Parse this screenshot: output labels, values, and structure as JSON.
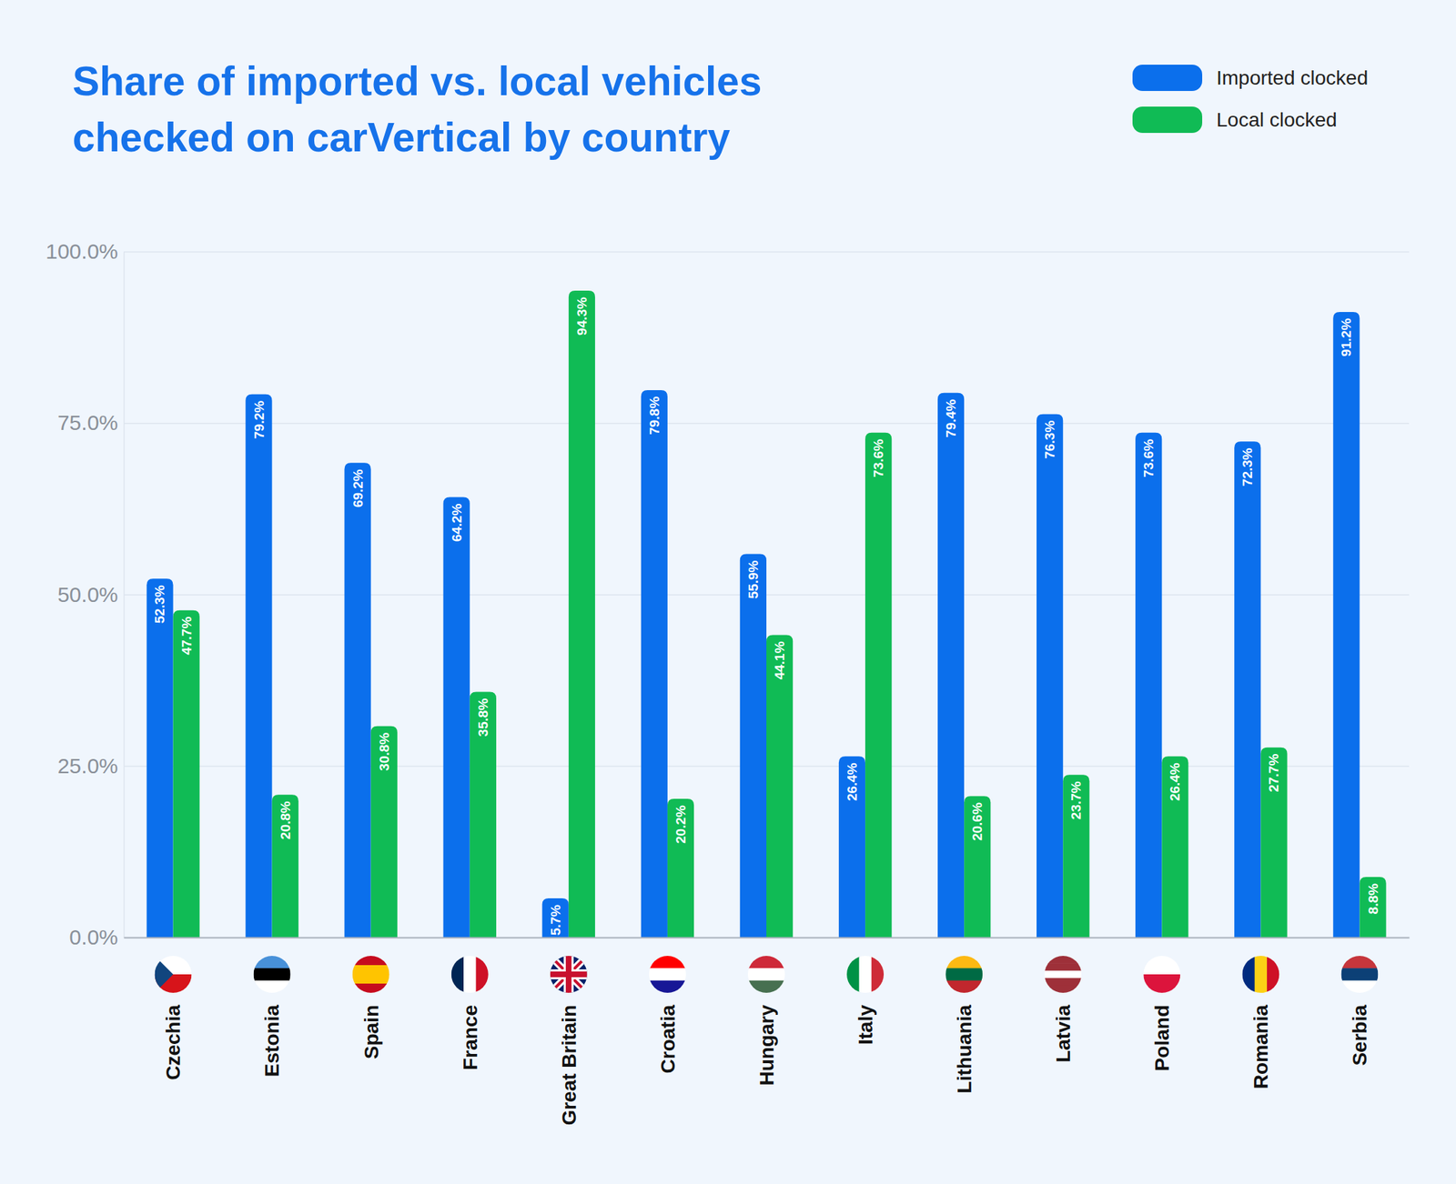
{
  "chart_data": {
    "type": "bar",
    "title": "Share of imported vs. local vehicles checked on carVertical by country",
    "categories": [
      "Czechia",
      "Estonia",
      "Spain",
      "France",
      "Great Britain",
      "Croatia",
      "Hungary",
      "Italy",
      "Lithuania",
      "Latvia",
      "Poland",
      "Romania",
      "Serbia"
    ],
    "series": [
      {
        "name": "Imported clocked",
        "color": "#0b6fec",
        "values": [
          52.3,
          79.2,
          69.2,
          64.2,
          5.7,
          79.8,
          55.9,
          26.4,
          79.4,
          76.3,
          73.6,
          72.3,
          91.2
        ],
        "value_labels": [
          "52.3%",
          "79.2%",
          "69.2%",
          "64.2%",
          "5.7%",
          "79.8%",
          "55.9%",
          "26.4%",
          "79.4%",
          "76.3%",
          "73.6%",
          "72.3%",
          "91.2%"
        ]
      },
      {
        "name": "Local clocked",
        "color": "#10bb55",
        "values": [
          47.7,
          20.8,
          30.8,
          35.8,
          94.3,
          20.2,
          44.1,
          73.6,
          20.6,
          23.7,
          26.4,
          27.7,
          8.8
        ],
        "value_labels": [
          "47.7%",
          "20.8%",
          "30.8%",
          "35.8%",
          "94.3%",
          "20.2%",
          "44.1%",
          "73.6%",
          "20.6%",
          "23.7%",
          "26.4%",
          "27.7%",
          "8.8%"
        ]
      }
    ],
    "ylim": [
      0,
      100
    ],
    "yticks": [
      {
        "value": 0,
        "label": "0.0%"
      },
      {
        "value": 25,
        "label": "25.0%"
      },
      {
        "value": 50,
        "label": "50.0%"
      },
      {
        "value": 75,
        "label": "75.0%"
      },
      {
        "value": 100,
        "label": "100.0%"
      }
    ],
    "grid": true,
    "legend": "top-right",
    "data_labels": true
  }
}
